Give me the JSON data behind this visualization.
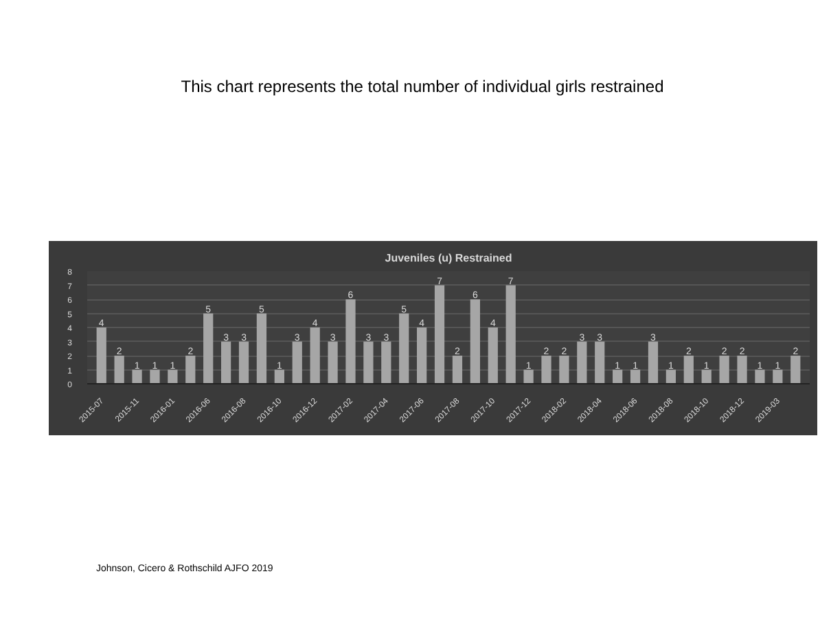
{
  "chart_data": {
    "type": "bar",
    "title": "Juveniles (u) Restrained",
    "annotations": [
      "This chart represents the total number of individual girls restrained",
      "Johnson, Cicero & Rothschild AJFO 2019"
    ],
    "categories": [
      "2015-07",
      null,
      "2015-11",
      null,
      "2016-01",
      null,
      "2016-06",
      null,
      "2016-08",
      null,
      "2016-10",
      null,
      "2016-12",
      null,
      "2017-02",
      null,
      "2017-04",
      null,
      "2017-06",
      null,
      "2017-08",
      null,
      "2017-10",
      null,
      "2017-12",
      null,
      "2018-02",
      null,
      "2018-04",
      null,
      "2018-06",
      null,
      "2018-08",
      null,
      "2018-10",
      null,
      "2018-12",
      null,
      "2019-03",
      null
    ],
    "values": [
      4,
      2,
      1,
      1,
      1,
      2,
      5,
      3,
      3,
      5,
      1,
      3,
      4,
      3,
      6,
      3,
      3,
      5,
      4,
      7,
      2,
      6,
      4,
      7,
      1,
      2,
      2,
      3,
      3,
      1,
      1,
      3,
      1,
      2,
      1,
      2,
      2,
      1,
      1,
      2
    ],
    "color": "#a6a6a6",
    "ylim": [
      0,
      8
    ],
    "yticks": [
      0,
      1,
      2,
      3,
      4,
      5,
      6,
      7,
      8
    ],
    "grid": "y",
    "data_labels": true
  }
}
